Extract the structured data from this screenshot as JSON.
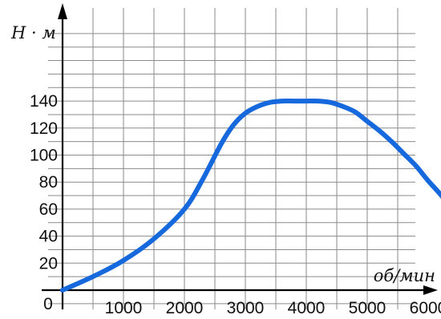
{
  "chart_data": {
    "type": "line",
    "title": "",
    "xlabel": "об/мин",
    "ylabel": "Н · м",
    "origin_label": "0",
    "xlim": [
      0,
      6700
    ],
    "ylim": [
      -10,
      190
    ],
    "x_ticks": [
      1000,
      2000,
      3000,
      4000,
      5000,
      6000
    ],
    "x_tick_labels": [
      "1000",
      "2000",
      "3000",
      "4000",
      "5000",
      "6000"
    ],
    "y_ticks": [
      20,
      40,
      60,
      80,
      100,
      120,
      140
    ],
    "y_tick_labels": [
      "20",
      "40",
      "60",
      "80",
      "100",
      "120",
      "140"
    ],
    "x_grid_step": 500,
    "y_grid_step": 10,
    "grid": true,
    "series": [
      {
        "color": "#1668dd",
        "x": [
          0,
          500,
          1000,
          1500,
          2000,
          2300,
          2600,
          2800,
          3000,
          3200,
          3400,
          3600,
          3800,
          4000,
          4200,
          4400,
          4600,
          4800,
          5000,
          5200,
          5400,
          5600,
          5800,
          6000,
          6200,
          6500
        ],
        "y": [
          0,
          10,
          22,
          38,
          60,
          82,
          108,
          122,
          131,
          136,
          139,
          140,
          140,
          140,
          140,
          139,
          136,
          132,
          125,
          118,
          110,
          101,
          92,
          81,
          71,
          55
        ]
      }
    ]
  }
}
